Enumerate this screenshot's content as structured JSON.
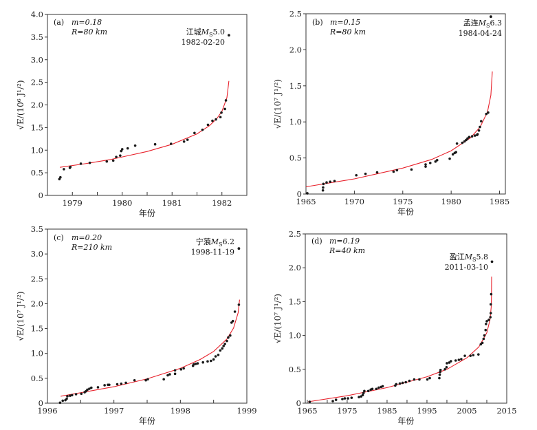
{
  "colors": {
    "fit_line": "#e8202a",
    "points": "#1a1a1a",
    "axes": "#333333"
  },
  "chart_data": [
    {
      "type": "scatter",
      "panel": "(a)",
      "m_text": "m=0.18",
      "r_text": "R=80 km",
      "event_place": "江城",
      "event_mag_symbol": "M",
      "event_mag_sub": "S",
      "event_mag": "5.0",
      "event_date": "1982-02-20",
      "xlabel": "年份",
      "ylabel": "√E/(10⁶ J¹/²)",
      "xlim": [
        1978.5,
        1982.5
      ],
      "ylim": [
        0,
        4.0
      ],
      "xticks": [
        1979,
        1980,
        1981,
        1982
      ],
      "xticks_minor": [
        1979.5,
        1980.5,
        1981.5
      ],
      "yticks": [
        0,
        0.5,
        1.0,
        1.5,
        2.0,
        2.5,
        3.0,
        3.5,
        4.0
      ],
      "yticklabels": [
        "0",
        "0.5",
        "1.0",
        "1.5",
        "2.0",
        "2.5",
        "3.0",
        "3.5",
        "4.0"
      ],
      "points": [
        [
          1978.74,
          0.36
        ],
        [
          1978.76,
          0.4
        ],
        [
          1978.83,
          0.58
        ],
        [
          1978.95,
          0.61
        ],
        [
          1978.96,
          0.63
        ],
        [
          1979.17,
          0.7
        ],
        [
          1979.35,
          0.72
        ],
        [
          1979.69,
          0.75
        ],
        [
          1979.82,
          0.77
        ],
        [
          1979.88,
          0.85
        ],
        [
          1979.96,
          0.88
        ],
        [
          1979.98,
          0.98
        ],
        [
          1980.0,
          1.02
        ],
        [
          1980.11,
          1.04
        ],
        [
          1980.26,
          1.1
        ],
        [
          1980.66,
          1.13
        ],
        [
          1980.98,
          1.14
        ],
        [
          1981.24,
          1.19
        ],
        [
          1981.31,
          1.23
        ],
        [
          1981.45,
          1.38
        ],
        [
          1981.61,
          1.45
        ],
        [
          1981.72,
          1.56
        ],
        [
          1981.81,
          1.65
        ],
        [
          1981.88,
          1.68
        ],
        [
          1981.97,
          1.73
        ],
        [
          1981.99,
          1.83
        ],
        [
          1982.06,
          1.91
        ],
        [
          1982.08,
          2.1
        ]
      ],
      "mainshock": [
        1982.14,
        3.54
      ],
      "fit_curve": [
        [
          1978.75,
          0.62
        ],
        [
          1979.25,
          0.7
        ],
        [
          1979.75,
          0.79
        ],
        [
          1980.0,
          0.85
        ],
        [
          1980.5,
          0.97
        ],
        [
          1981.0,
          1.13
        ],
        [
          1981.5,
          1.36
        ],
        [
          1981.75,
          1.54
        ],
        [
          1981.9,
          1.7
        ],
        [
          1982.0,
          1.86
        ],
        [
          1982.1,
          2.16
        ],
        [
          1982.14,
          2.53
        ]
      ]
    },
    {
      "type": "scatter",
      "panel": "(b)",
      "m_text": "m=0.15",
      "r_text": "R=80 km",
      "event_place": "孟连",
      "event_mag_symbol": "M",
      "event_mag_sub": "S",
      "event_mag": "6.3",
      "event_date": "1984-04-24",
      "xlabel": "年份",
      "ylabel": "√E/(10⁷ J¹/²)",
      "xlim": [
        1965,
        1985.6
      ],
      "ylim": [
        0,
        2.5
      ],
      "xticks": [
        1965,
        1970,
        1975,
        1980,
        1985
      ],
      "xticks_minor": [],
      "yticks": [
        0,
        0.5,
        1.0,
        1.5,
        2.0,
        2.5
      ],
      "yticklabels": [
        "0",
        "0.5",
        "1.0",
        "1.5",
        "2.0",
        "2.5"
      ],
      "points": [
        [
          1965.14,
          0.01
        ],
        [
          1966.75,
          0.05
        ],
        [
          1966.77,
          0.09
        ],
        [
          1966.8,
          0.14
        ],
        [
          1967.13,
          0.16
        ],
        [
          1967.5,
          0.17
        ],
        [
          1967.95,
          0.18
        ],
        [
          1970.2,
          0.26
        ],
        [
          1971.15,
          0.28
        ],
        [
          1972.35,
          0.3
        ],
        [
          1974.05,
          0.31
        ],
        [
          1974.4,
          0.33
        ],
        [
          1975.9,
          0.34
        ],
        [
          1977.36,
          0.38
        ],
        [
          1977.36,
          0.41
        ],
        [
          1977.84,
          0.43
        ],
        [
          1978.38,
          0.45
        ],
        [
          1978.55,
          0.47
        ],
        [
          1979.85,
          0.49
        ],
        [
          1980.18,
          0.55
        ],
        [
          1980.37,
          0.57
        ],
        [
          1980.5,
          0.58
        ],
        [
          1980.6,
          0.7
        ],
        [
          1981.15,
          0.71
        ],
        [
          1981.38,
          0.73
        ],
        [
          1981.55,
          0.75
        ],
        [
          1981.69,
          0.77
        ],
        [
          1981.86,
          0.79
        ],
        [
          1982.16,
          0.8
        ],
        [
          1982.45,
          0.81
        ],
        [
          1982.68,
          0.82
        ],
        [
          1982.73,
          0.83
        ],
        [
          1982.87,
          0.88
        ],
        [
          1982.97,
          0.93
        ],
        [
          1983.1,
          1.01
        ],
        [
          1983.63,
          1.11
        ],
        [
          1983.82,
          1.13
        ]
      ],
      "mainshock": [
        1984.1,
        2.46
      ],
      "fit_curve": [
        [
          1965.0,
          0.1
        ],
        [
          1970.0,
          0.21
        ],
        [
          1975.0,
          0.36
        ],
        [
          1978.0,
          0.48
        ],
        [
          1980.0,
          0.6
        ],
        [
          1982.0,
          0.78
        ],
        [
          1983.0,
          0.93
        ],
        [
          1983.75,
          1.14
        ],
        [
          1984.1,
          1.37
        ],
        [
          1984.22,
          1.63
        ],
        [
          1984.25,
          1.7
        ]
      ]
    },
    {
      "type": "scatter",
      "panel": "(c)",
      "m_text": "m=0.20",
      "r_text": "R=210 km",
      "event_place": "宁蒗",
      "event_mag_symbol": "M",
      "event_mag_sub": "S",
      "event_mag": "6.2",
      "event_date": "1998-11-19",
      "xlabel": "年份",
      "ylabel": "√E/(10⁷ J¹/²)",
      "xlim": [
        1996,
        1999
      ],
      "ylim": [
        0,
        3.5
      ],
      "xticks": [
        1996,
        1997,
        1998,
        1999
      ],
      "xticks_minor": [
        1996.5,
        1997.5,
        1998.5
      ],
      "yticks": [
        0,
        0.5,
        1.0,
        1.5,
        2.0,
        2.5,
        3.0,
        3.5
      ],
      "yticklabels": [
        "0",
        "0.5",
        "1.0",
        "1.5",
        "2.0",
        "2.5",
        "3.0",
        "3.5"
      ],
      "points": [
        [
          1996.19,
          0.01
        ],
        [
          1996.23,
          0.05
        ],
        [
          1996.27,
          0.06
        ],
        [
          1996.29,
          0.09
        ],
        [
          1996.3,
          0.14
        ],
        [
          1996.34,
          0.15
        ],
        [
          1996.37,
          0.16
        ],
        [
          1996.43,
          0.18
        ],
        [
          1996.51,
          0.19
        ],
        [
          1996.56,
          0.22
        ],
        [
          1996.58,
          0.24
        ],
        [
          1996.6,
          0.27
        ],
        [
          1996.63,
          0.29
        ],
        [
          1996.66,
          0.31
        ],
        [
          1996.76,
          0.32
        ],
        [
          1996.86,
          0.36
        ],
        [
          1996.91,
          0.37
        ],
        [
          1996.93,
          0.37
        ],
        [
          1997.05,
          0.38
        ],
        [
          1997.11,
          0.39
        ],
        [
          1997.18,
          0.41
        ],
        [
          1997.31,
          0.46
        ],
        [
          1997.48,
          0.46
        ],
        [
          1997.51,
          0.48
        ],
        [
          1997.75,
          0.48
        ],
        [
          1997.81,
          0.56
        ],
        [
          1997.84,
          0.58
        ],
        [
          1997.92,
          0.59
        ],
        [
          1997.92,
          0.66
        ],
        [
          1998.01,
          0.68
        ],
        [
          1998.05,
          0.7
        ],
        [
          1998.19,
          0.75
        ],
        [
          1998.2,
          0.78
        ],
        [
          1998.23,
          0.79
        ],
        [
          1998.26,
          0.8
        ],
        [
          1998.34,
          0.82
        ],
        [
          1998.41,
          0.84
        ],
        [
          1998.46,
          0.85
        ],
        [
          1998.5,
          0.88
        ],
        [
          1998.53,
          0.94
        ],
        [
          1998.57,
          0.97
        ],
        [
          1998.6,
          1.06
        ],
        [
          1998.63,
          1.1
        ],
        [
          1998.65,
          1.15
        ],
        [
          1998.67,
          1.19
        ],
        [
          1998.7,
          1.25
        ],
        [
          1998.72,
          1.32
        ],
        [
          1998.75,
          1.36
        ],
        [
          1998.77,
          1.62
        ],
        [
          1998.79,
          1.65
        ],
        [
          1998.82,
          1.84
        ],
        [
          1998.88,
          1.98
        ]
      ],
      "mainshock": [
        1998.88,
        3.11
      ],
      "fit_curve": [
        [
          1996.2,
          0.14
        ],
        [
          1996.5,
          0.21
        ],
        [
          1997.0,
          0.33
        ],
        [
          1997.5,
          0.49
        ],
        [
          1998.0,
          0.7
        ],
        [
          1998.3,
          0.88
        ],
        [
          1998.5,
          1.04
        ],
        [
          1998.7,
          1.29
        ],
        [
          1998.8,
          1.51
        ],
        [
          1998.87,
          1.82
        ],
        [
          1998.89,
          2.08
        ]
      ]
    },
    {
      "type": "scatter",
      "panel": "(d)",
      "m_text": "m=0.19",
      "r_text": "R=40 km",
      "event_place": "盈江",
      "event_mag_symbol": "M",
      "event_mag_sub": "S",
      "event_mag": "5.8",
      "event_date": "2011-03-10",
      "xlabel": "年份",
      "ylabel": "√E/(10⁷ J¹/²)",
      "xlim": [
        1964.5,
        2015
      ],
      "ylim": [
        0,
        2.5
      ],
      "xticks": [
        1965,
        1975,
        1985,
        1995,
        2005,
        2015
      ],
      "xticks_minor": [
        1970,
        1980,
        1990,
        2000,
        2010
      ],
      "yticks": [
        0,
        0.5,
        1.0,
        1.5,
        2.0,
        2.5
      ],
      "yticklabels": [
        "0",
        "0.5",
        "1.0",
        "1.5",
        "2.0",
        "2.5"
      ],
      "points": [
        [
          1965.6,
          0.02
        ],
        [
          1971.4,
          0.03
        ],
        [
          1972.2,
          0.05
        ],
        [
          1973.8,
          0.06
        ],
        [
          1974.4,
          0.07
        ],
        [
          1975.2,
          0.07
        ],
        [
          1976.1,
          0.08
        ],
        [
          1977.95,
          0.09
        ],
        [
          1978.5,
          0.1
        ],
        [
          1978.9,
          0.12
        ],
        [
          1979.1,
          0.15
        ],
        [
          1979.3,
          0.18
        ],
        [
          1980.3,
          0.18
        ],
        [
          1980.9,
          0.2
        ],
        [
          1981.3,
          0.21
        ],
        [
          1982.3,
          0.21
        ],
        [
          1982.9,
          0.23
        ],
        [
          1983.5,
          0.24
        ],
        [
          1983.9,
          0.25
        ],
        [
          1987.05,
          0.26
        ],
        [
          1987.3,
          0.28
        ],
        [
          1988.2,
          0.29
        ],
        [
          1988.9,
          0.3
        ],
        [
          1989.7,
          0.31
        ],
        [
          1990.6,
          0.33
        ],
        [
          1991.8,
          0.35
        ],
        [
          1993.1,
          0.35
        ],
        [
          1995.1,
          0.35
        ],
        [
          1995.7,
          0.37
        ],
        [
          1998.1,
          0.37
        ],
        [
          1998.2,
          0.42
        ],
        [
          1998.3,
          0.46
        ],
        [
          1998.4,
          0.49
        ],
        [
          1999.5,
          0.5
        ],
        [
          1999.9,
          0.53
        ],
        [
          2000.0,
          0.59
        ],
        [
          2000.6,
          0.6
        ],
        [
          2001.0,
          0.62
        ],
        [
          2002.2,
          0.63
        ],
        [
          2003.0,
          0.64
        ],
        [
          2003.6,
          0.65
        ],
        [
          2004.5,
          0.7
        ],
        [
          2005.9,
          0.7
        ],
        [
          2006.6,
          0.71
        ],
        [
          2007.9,
          0.72
        ],
        [
          2008.5,
          0.87
        ],
        [
          2008.9,
          0.89
        ],
        [
          2009.2,
          0.95
        ],
        [
          2009.4,
          1.0
        ],
        [
          2009.7,
          1.08
        ],
        [
          2009.8,
          1.17
        ],
        [
          2010.0,
          1.21
        ],
        [
          2010.5,
          1.23
        ],
        [
          2010.9,
          1.27
        ],
        [
          2011.0,
          1.33
        ],
        [
          2011.0,
          1.46
        ],
        [
          2011.1,
          1.61
        ]
      ],
      "mainshock": [
        2011.3,
        2.09
      ],
      "fit_curve": [
        [
          1965.2,
          0.02
        ],
        [
          1975.0,
          0.11
        ],
        [
          1985.0,
          0.23
        ],
        [
          1995.0,
          0.39
        ],
        [
          2000.0,
          0.5
        ],
        [
          2005.0,
          0.67
        ],
        [
          2008.0,
          0.83
        ],
        [
          2010.0,
          1.04
        ],
        [
          2010.8,
          1.23
        ],
        [
          2011.1,
          1.42
        ],
        [
          2011.18,
          1.59
        ],
        [
          2011.2,
          1.87
        ]
      ]
    }
  ]
}
